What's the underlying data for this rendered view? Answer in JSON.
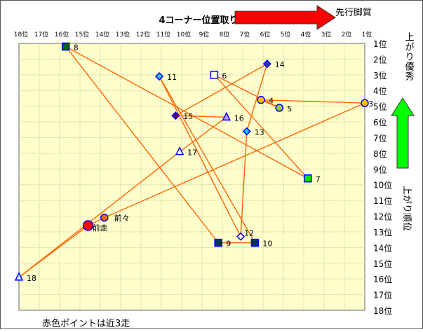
{
  "chart_data": {
    "type": "scatter",
    "title": "4コーナー位置取り",
    "xlabel": "4コーナー位置取り",
    "ylabel": "上がり順位",
    "x_ticks": [
      "18位",
      "17位",
      "16位",
      "15位",
      "14位",
      "13位",
      "12位",
      "11位",
      "10位",
      "9位",
      "8位",
      "7位",
      "6位",
      "5位",
      "4位",
      "3位",
      "2位",
      "1位"
    ],
    "y_ticks": [
      "1位",
      "2位",
      "3位",
      "4位",
      "5位",
      "6位",
      "7位",
      "8位",
      "9位",
      "10位",
      "11位",
      "12位",
      "13位",
      "14位",
      "15位",
      "16位",
      "17位",
      "18位"
    ],
    "xlim": [
      18,
      1
    ],
    "ylim": [
      18,
      1
    ],
    "grid": true,
    "line_color": "#FF6600",
    "points": [
      {
        "label": "3",
        "x": 1.0,
        "y": 4.8,
        "marker": "circle",
        "fill": "#FFC000"
      },
      {
        "label": "4",
        "x": 6.1,
        "y": 4.6,
        "marker": "circle",
        "fill": "#FFC000"
      },
      {
        "label": "5",
        "x": 5.2,
        "y": 5.1,
        "marker": "circle",
        "fill": "#99CC33"
      },
      {
        "label": "6",
        "x": 8.4,
        "y": 3.0,
        "marker": "square",
        "fill": "#FFFFFF"
      },
      {
        "label": "7",
        "x": 3.8,
        "y": 9.6,
        "marker": "square",
        "fill": "#00E000"
      },
      {
        "label": "8",
        "x": 15.7,
        "y": 1.2,
        "marker": "square",
        "fill": "#006600"
      },
      {
        "label": "9",
        "x": 8.2,
        "y": 13.7,
        "marker": "square",
        "fill": "#003366"
      },
      {
        "label": "10",
        "x": 6.4,
        "y": 13.7,
        "marker": "square",
        "fill": "#003366"
      },
      {
        "label": "11",
        "x": 11.1,
        "y": 3.1,
        "marker": "diamond",
        "fill": "#33CCCC"
      },
      {
        "label": "12",
        "x": 7.1,
        "y": 13.3,
        "marker": "diamond",
        "fill": "#FFFFFF"
      },
      {
        "label": "13",
        "x": 6.8,
        "y": 6.6,
        "marker": "diamond",
        "fill": "#00CCFF"
      },
      {
        "label": "14",
        "x": 5.8,
        "y": 2.3,
        "marker": "diamond",
        "fill": "#333399"
      },
      {
        "label": "15",
        "x": 10.3,
        "y": 5.6,
        "marker": "diamond",
        "fill": "#660066"
      },
      {
        "label": "16",
        "x": 7.8,
        "y": 5.7,
        "marker": "triangle",
        "fill": "#CC99FF"
      },
      {
        "label": "17",
        "x": 10.1,
        "y": 7.9,
        "marker": "triangle",
        "fill": "#FFFFFF"
      },
      {
        "label": "18",
        "x": 18.0,
        "y": 15.9,
        "marker": "triangle",
        "fill": "#CCECFF"
      },
      {
        "label": "前走",
        "x": 14.6,
        "y": 12.6,
        "marker": "circle-large",
        "fill": "#FF0000"
      },
      {
        "label": "前々",
        "x": 13.8,
        "y": 12.1,
        "marker": "circle",
        "fill": "#FF6600"
      }
    ]
  },
  "annotations": {
    "right_arrow_text": "先行脚質",
    "up_arrow_text": "上がり優秀",
    "y_side_label": "上がり順位",
    "footnote": "赤色ポイントは近3走",
    "right_arrow_color": "#FF0000",
    "up_arrow_color": "#00FF00",
    "plot_bg": "#FFFFCC"
  }
}
